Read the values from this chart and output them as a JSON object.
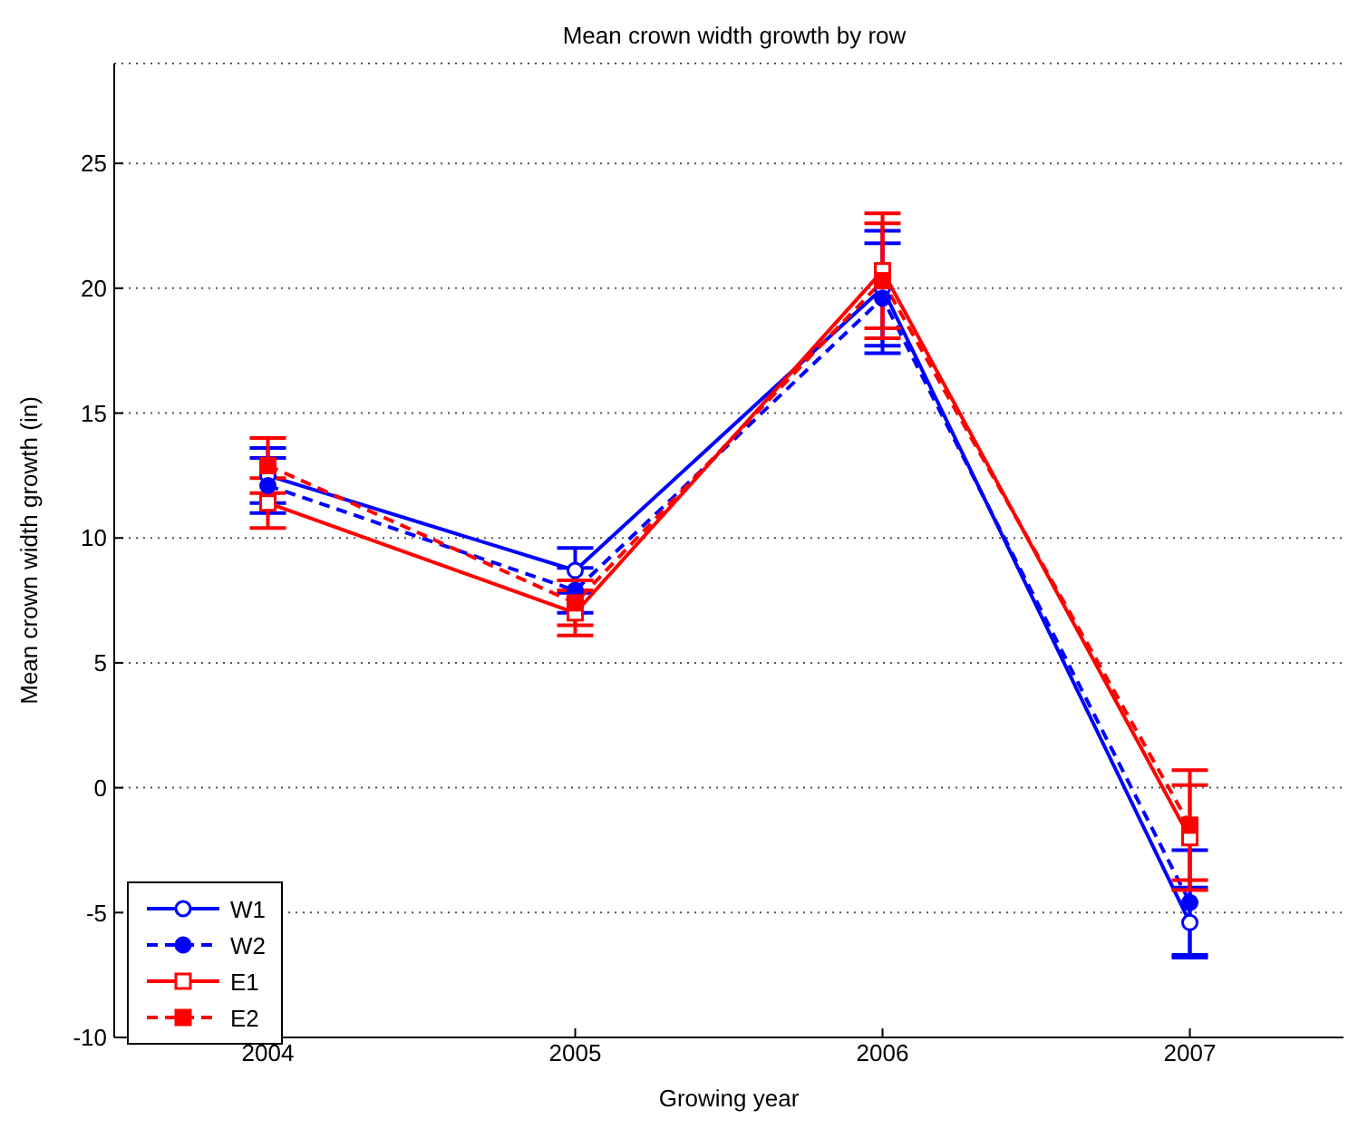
{
  "chart_data": {
    "type": "line",
    "title": "Mean crown width growth by row",
    "xlabel": "Growing year",
    "ylabel": "Mean crown width growth (in)",
    "x": [
      2004,
      2005,
      2006,
      2007
    ],
    "xlim": [
      2003.5,
      2007.5
    ],
    "xticks": [
      2004,
      2005,
      2006,
      2007
    ],
    "ylim": [
      -10,
      29
    ],
    "yticks": [
      -10,
      -5,
      0,
      5,
      10,
      15,
      20,
      25
    ],
    "grid": "y",
    "legend": "bottom left",
    "series": [
      {
        "name": "W1",
        "color": "#0000ff",
        "values": [
          12.5,
          8.7,
          20.0,
          -5.4
        ],
        "errors": [
          1.1,
          0.9,
          2.3,
          1.4
        ],
        "marker": "circle",
        "line_style": "solid"
      },
      {
        "name": "W2",
        "color": "#0000ff",
        "values": [
          12.1,
          7.9,
          19.6,
          -4.6
        ],
        "errors": [
          1.1,
          0.9,
          2.2,
          2.1
        ],
        "marker": "circle",
        "line_style": "dashed"
      },
      {
        "name": "E1",
        "color": "#ff0000",
        "values": [
          11.4,
          7.0,
          20.7,
          -2.0
        ],
        "errors": [
          1.0,
          0.9,
          2.3,
          2.1
        ],
        "marker": "square",
        "line_style": "solid"
      },
      {
        "name": "E2",
        "color": "#ff0000",
        "values": [
          12.9,
          7.4,
          20.3,
          -1.5
        ],
        "errors": [
          1.1,
          0.9,
          2.3,
          2.2
        ],
        "marker": "square",
        "line_style": "dashed"
      }
    ]
  }
}
